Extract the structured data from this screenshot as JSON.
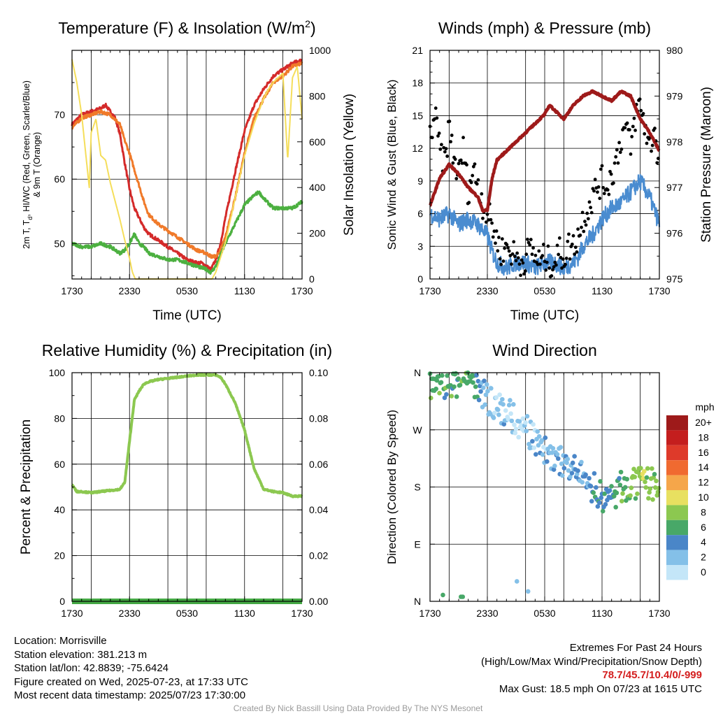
{
  "chart_data": [
    {
      "type": "line",
      "title": "Temperature (F) & Insolation (W/m",
      "title_sup": "2",
      "title_end": ")",
      "xlabel": "Time (UTC)",
      "ylabel": "2m T, T",
      "ylabel_sub": "d",
      "ylabel_rest": ", HI/WC (Red, Green, Scarlet/Blue)",
      "ylabel2": "& 9m T (Orange)",
      "y2label": "Solar Insolation (Yellow)",
      "x_ticks": [
        "1730",
        "2330",
        "0530",
        "1130",
        "1730"
      ],
      "ylim": [
        44.5,
        80
      ],
      "y_ticks": [
        50,
        60,
        70
      ],
      "y2lim": [
        0,
        1000
      ],
      "y2_ticks": [
        0,
        200,
        400,
        600,
        800,
        1000
      ],
      "grid": true,
      "series": [
        {
          "color": "#d42a2a",
          "x": [
            0,
            1,
            2,
            3,
            3.5,
            4,
            4.5,
            5,
            5.5,
            6,
            6.5,
            7,
            7.5,
            8,
            9,
            10,
            11,
            12,
            13,
            13.5,
            14,
            14.5,
            15,
            15.5,
            16,
            17,
            18,
            19,
            20,
            21,
            22,
            23,
            24
          ],
          "y": [
            68.5,
            70,
            70.5,
            71,
            71.5,
            70.5,
            69.5,
            67,
            62.5,
            58.5,
            55.5,
            54,
            52.5,
            51.5,
            50.5,
            49.5,
            48.5,
            47.5,
            47,
            47,
            46.5,
            46,
            47.5,
            50,
            54,
            61,
            67.5,
            71.5,
            74,
            76,
            77,
            78,
            78.5
          ]
        },
        {
          "color": "#f07a2a",
          "x": [
            0,
            1,
            2,
            3,
            4,
            5,
            5.5,
            6,
            6.5,
            7,
            7.5,
            8,
            9,
            10,
            11,
            12,
            13,
            14,
            14.5,
            15,
            15.5,
            16,
            17,
            18,
            19,
            20,
            21,
            22,
            23,
            24
          ],
          "y": [
            68,
            69.5,
            70,
            70.5,
            70,
            68.5,
            66,
            64,
            61.5,
            59,
            56.5,
            54.5,
            53,
            52,
            51,
            50,
            49,
            48.5,
            48,
            48,
            49,
            51,
            57,
            64,
            69.5,
            72.5,
            75,
            76,
            77.5,
            78
          ]
        },
        {
          "color": "#4cb040",
          "x": [
            0,
            1,
            2,
            3,
            4,
            5,
            5.5,
            6,
            6.5,
            7,
            7.5,
            8,
            9,
            10,
            11,
            12,
            13,
            14,
            14.5,
            15,
            16,
            17,
            18,
            19,
            19.5,
            20,
            21,
            22,
            23,
            24
          ],
          "y": [
            50,
            49.5,
            49.5,
            50,
            49.5,
            48.5,
            49,
            50,
            51.5,
            50,
            49.5,
            48.5,
            48,
            47.5,
            47.5,
            47,
            46.5,
            46,
            45.5,
            46.5,
            50,
            53,
            56,
            57.5,
            58,
            57,
            55.5,
            55.5,
            55.5,
            56.5
          ]
        },
        {
          "color": "#f5de5a",
          "x": [
            0,
            0.5,
            1,
            1.5,
            1.8,
            2,
            2.5,
            3,
            3.5,
            4,
            4.5,
            5,
            5.5,
            6,
            6.3,
            6.6,
            7,
            8,
            10,
            12,
            14,
            14.6,
            15,
            16,
            17,
            18,
            19,
            20,
            20.5,
            21,
            22,
            22.5,
            23,
            23.5,
            24
          ],
          "y2": [
            960,
            860,
            720,
            520,
            400,
            640,
            700,
            540,
            520,
            420,
            340,
            260,
            170,
            90,
            30,
            0,
            0,
            0,
            0,
            0,
            0,
            0,
            30,
            160,
            350,
            540,
            680,
            790,
            830,
            860,
            900,
            520,
            880,
            930,
            700
          ]
        }
      ]
    },
    {
      "type": "line",
      "title": "Winds (mph) & Pressure (mb)",
      "xlabel": "Time (UTC)",
      "ylabel": "Sonic Wind & Gust (Blue, Black)",
      "y2label": "Station Pressure (Maroon)",
      "x_ticks": [
        "1730",
        "2330",
        "0530",
        "1130",
        "1730"
      ],
      "ylim": [
        0,
        21
      ],
      "y_ticks": [
        0,
        3,
        6,
        9,
        12,
        15,
        18,
        21
      ],
      "y2lim": [
        975,
        980
      ],
      "y2_ticks": [
        975,
        976,
        977,
        978,
        979,
        980
      ],
      "grid": true,
      "series": [
        {
          "color": "#4a8cd0",
          "x": [
            0,
            1,
            2,
            3,
            4,
            5,
            5.5,
            6,
            6.5,
            7,
            8,
            9,
            10,
            11,
            12,
            13,
            14,
            15,
            15.5,
            16,
            17,
            18,
            19,
            20,
            21,
            22,
            23,
            24
          ],
          "y": [
            6,
            5.5,
            6,
            5,
            5.5,
            5,
            4.5,
            4,
            2.5,
            1.5,
            1,
            1.5,
            1.5,
            1,
            1.5,
            1.5,
            1,
            1.5,
            2,
            3,
            4,
            5.5,
            6.5,
            7,
            8,
            9,
            7.5,
            5
          ]
        },
        {
          "color": "#000000",
          "x": [
            0,
            0.5,
            1,
            1.5,
            2,
            2.5,
            3,
            3.5,
            4,
            4.5,
            5,
            5.5,
            6,
            6.5,
            7,
            7.5,
            8,
            8.5,
            9,
            9.5,
            10,
            10.5,
            11,
            11.5,
            12,
            12.5,
            13,
            13.5,
            14,
            14.5,
            15,
            15.5,
            16,
            16.5,
            17,
            17.5,
            18,
            18.5,
            19,
            19.5,
            20,
            20.5,
            21,
            21.5,
            22,
            22.5,
            23,
            23.5,
            24
          ],
          "y": [
            13,
            15,
            12,
            10.5,
            14,
            11,
            9.5,
            12,
            8,
            10,
            9,
            7,
            6,
            5,
            3.5,
            2.5,
            3,
            2.5,
            2,
            1.5,
            2,
            3,
            2,
            1.5,
            2,
            1.5,
            1.5,
            2.5,
            2,
            3,
            3,
            4,
            5.5,
            6.5,
            7.5,
            8.5,
            9,
            8.5,
            9.5,
            11,
            13,
            14,
            12,
            15,
            16,
            14,
            12,
            14,
            10
          ]
        },
        {
          "color": "#9e1a1a",
          "x": [
            0,
            1,
            2,
            3,
            4,
            5,
            5.5,
            6,
            6.5,
            7,
            8,
            9,
            10,
            11,
            12,
            12.5,
            13,
            14,
            15,
            16,
            17,
            18,
            19,
            20,
            21,
            22,
            23,
            24
          ],
          "y2": [
            976.6,
            977.2,
            977.5,
            977.3,
            977.0,
            976.8,
            976.5,
            976.5,
            977.2,
            977.6,
            977.8,
            978.0,
            978.2,
            978.4,
            978.6,
            978.8,
            978.7,
            978.5,
            978.8,
            979.0,
            979.1,
            979.0,
            978.9,
            979.1,
            979.0,
            978.5,
            978.2,
            977.8
          ]
        }
      ]
    },
    {
      "type": "line",
      "title": "Relative Humidity (%) & Precipitation (in)",
      "xlabel": "",
      "ylabel": "Percent & Precipitation",
      "x_ticks": [
        "1730",
        "2330",
        "0530",
        "1130",
        "1730"
      ],
      "ylim": [
        0,
        100
      ],
      "y_ticks": [
        0,
        20,
        40,
        60,
        80,
        100
      ],
      "y2lim": [
        0,
        0.1
      ],
      "y2_ticks": [
        "0.00",
        "0.02",
        "0.04",
        "0.06",
        "0.08",
        "0.10"
      ],
      "grid": true,
      "series": [
        {
          "color": "#8cc850",
          "x": [
            0,
            0.5,
            1,
            2,
            3,
            4,
            5,
            5.5,
            6,
            6.5,
            7,
            7.5,
            8,
            9,
            10,
            11,
            12,
            13,
            14,
            15,
            15.5,
            16,
            17,
            18,
            19,
            20,
            21,
            22,
            23,
            24
          ],
          "y": [
            51,
            48,
            48,
            47.5,
            48,
            48.5,
            49,
            52,
            70,
            88,
            92,
            95,
            96,
            97,
            97.5,
            98,
            98.5,
            99,
            99,
            99,
            98,
            95,
            87,
            75,
            58,
            49,
            48,
            47.5,
            46,
            46
          ]
        },
        {
          "color": "#44a844",
          "x": [
            0,
            24
          ],
          "y": [
            0.0,
            0.0
          ]
        }
      ]
    },
    {
      "type": "scatter",
      "title": "Wind Direction",
      "xlabel": "",
      "ylabel": "Direction (Colored By Speed)",
      "x_ticks": [
        "1730",
        "2330",
        "0530",
        "1130",
        "1730"
      ],
      "y_ticks": [
        "N",
        "E",
        "S",
        "W",
        "N"
      ],
      "ylim": [
        0,
        360
      ],
      "grid": true,
      "colorbar": {
        "label": "mph",
        "labels": [
          "20+",
          "18",
          "16",
          "14",
          "12",
          "10",
          "8",
          "6",
          "4",
          "2",
          "0"
        ],
        "colors": [
          "#9e1a1a",
          "#c41e1e",
          "#de3a2a",
          "#f06a30",
          "#f5a64a",
          "#e8e060",
          "#8cc850",
          "#48a868",
          "#4a86c8",
          "#84c0e8",
          "#c4e6f8"
        ]
      }
    }
  ],
  "info": {
    "location": "Location: Morrisville",
    "elevation": "Station elevation: 381.213 m",
    "latlon": "Station lat/lon: 42.8839; -75.6424",
    "created": "Figure created on Wed, 2025-07-23, at 17:33 UTC",
    "recent": "Most recent data timestamp: 2025/07/23 17:30:00",
    "extremes_title": "Extremes For Past 24 Hours",
    "extremes_sub": "(High/Low/Max Wind/Precipitation/Snow Depth)",
    "extremes_values": "78.7/45.7/10.4/0/-999",
    "max_gust": "Max Gust: 18.5 mph On 07/23 at 1615 UTC"
  },
  "credit": "Created By Nick Bassill Using Data Provided By The NYS Mesonet"
}
